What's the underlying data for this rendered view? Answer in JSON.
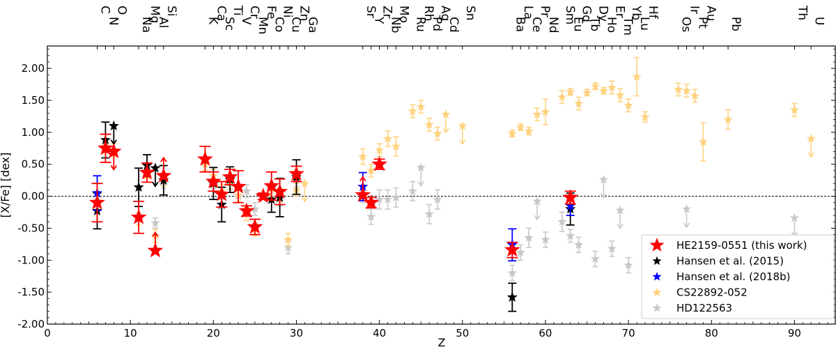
{
  "chart_data": {
    "type": "scatter",
    "title": "",
    "xlabel": "Z",
    "ylabel": "[X/Fe] [dex]",
    "xlim": [
      0,
      95
    ],
    "ylim": [
      -2.0,
      2.35
    ],
    "xticks": [
      0,
      10,
      20,
      30,
      40,
      50,
      60,
      70,
      80,
      90
    ],
    "xtick_labels": [
      "0",
      "10",
      "20",
      "30",
      "40",
      "50",
      "60",
      "70",
      "80",
      "90"
    ],
    "yticks": [
      -2.0,
      -1.5,
      -1.0,
      -0.5,
      0.0,
      0.5,
      1.0,
      1.5,
      2.0
    ],
    "ytick_labels": [
      "-2.00",
      "-1.50",
      "-1.00",
      "-0.50",
      "0.00",
      "0.50",
      "1.00",
      "1.50",
      "2.00"
    ],
    "reference_line": 0.0,
    "legend_position": "lower-right",
    "element_labels": [
      {
        "z": 6,
        "symbol": "C",
        "row": 0
      },
      {
        "z": 7,
        "symbol": "N",
        "row": 1
      },
      {
        "z": 8,
        "symbol": "O",
        "row": 0
      },
      {
        "z": 11,
        "symbol": "Na",
        "row": 1
      },
      {
        "z": 12,
        "symbol": "Mg",
        "row": 0
      },
      {
        "z": 13,
        "symbol": "Al",
        "row": 1
      },
      {
        "z": 14,
        "symbol": "Si",
        "row": 0
      },
      {
        "z": 19,
        "symbol": "K",
        "row": 1
      },
      {
        "z": 20,
        "symbol": "Ca",
        "row": 0
      },
      {
        "z": 21,
        "symbol": "Sc",
        "row": 1
      },
      {
        "z": 22,
        "symbol": "Ti",
        "row": 0
      },
      {
        "z": 23,
        "symbol": "V",
        "row": 1
      },
      {
        "z": 24,
        "symbol": "Cr",
        "row": 0
      },
      {
        "z": 25,
        "symbol": "Mn",
        "row": 1
      },
      {
        "z": 26,
        "symbol": "Fe",
        "row": 0
      },
      {
        "z": 27,
        "symbol": "Co",
        "row": 1
      },
      {
        "z": 28,
        "symbol": "Ni",
        "row": 0
      },
      {
        "z": 29,
        "symbol": "Cu",
        "row": 1
      },
      {
        "z": 30,
        "symbol": "Zn",
        "row": 0
      },
      {
        "z": 31,
        "symbol": "Ga",
        "row": 1
      },
      {
        "z": 38,
        "symbol": "Sr",
        "row": 0
      },
      {
        "z": 39,
        "symbol": "Y",
        "row": 1
      },
      {
        "z": 40,
        "symbol": "Zr",
        "row": 0
      },
      {
        "z": 41,
        "symbol": "Nb",
        "row": 1
      },
      {
        "z": 42,
        "symbol": "Mo",
        "row": 0
      },
      {
        "z": 44,
        "symbol": "Ru",
        "row": 1
      },
      {
        "z": 45,
        "symbol": "Rh",
        "row": 0
      },
      {
        "z": 46,
        "symbol": "Pd",
        "row": 1
      },
      {
        "z": 47,
        "symbol": "Ag",
        "row": 0
      },
      {
        "z": 48,
        "symbol": "Cd",
        "row": 1
      },
      {
        "z": 50,
        "symbol": "Sn",
        "row": 0
      },
      {
        "z": 56,
        "symbol": "Ba",
        "row": 1
      },
      {
        "z": 57,
        "symbol": "La",
        "row": 0
      },
      {
        "z": 58,
        "symbol": "Ce",
        "row": 1
      },
      {
        "z": 59,
        "symbol": "Pr",
        "row": 0
      },
      {
        "z": 60,
        "symbol": "Nd",
        "row": 1
      },
      {
        "z": 62,
        "symbol": "Sm",
        "row": 0
      },
      {
        "z": 63,
        "symbol": "Eu",
        "row": 1
      },
      {
        "z": 64,
        "symbol": "Gd",
        "row": 0
      },
      {
        "z": 65,
        "symbol": "Tb",
        "row": 1
      },
      {
        "z": 66,
        "symbol": "Dy",
        "row": 0
      },
      {
        "z": 67,
        "symbol": "Ho",
        "row": 1
      },
      {
        "z": 68,
        "symbol": "Er",
        "row": 0
      },
      {
        "z": 69,
        "symbol": "Tm",
        "row": 1
      },
      {
        "z": 70,
        "symbol": "Yb",
        "row": 0
      },
      {
        "z": 71,
        "symbol": "Lu",
        "row": 1
      },
      {
        "z": 72,
        "symbol": "Hf",
        "row": 0
      },
      {
        "z": 76,
        "symbol": "Os",
        "row": 1
      },
      {
        "z": 77,
        "symbol": "Ir",
        "row": 0
      },
      {
        "z": 78,
        "symbol": "Pt",
        "row": 1
      },
      {
        "z": 79,
        "symbol": "Au",
        "row": 0
      },
      {
        "z": 82,
        "symbol": "Pb",
        "row": 1
      },
      {
        "z": 90,
        "symbol": "Th",
        "row": 0
      },
      {
        "z": 92,
        "symbol": "U",
        "row": 1
      }
    ],
    "series": [
      {
        "name": "HD122563",
        "color": "#c8c8c8",
        "marker": "star-small",
        "points": [
          {
            "z": 13,
            "y": -0.42,
            "err": 0.08
          },
          {
            "z": 14,
            "y": 0.22,
            "err": 0.1
          },
          {
            "z": 20,
            "y": 0.22,
            "err": 0.1
          },
          {
            "z": 21,
            "y": 0.05,
            "err": 0.1
          },
          {
            "z": 22,
            "y": 0.2,
            "err": 0.1
          },
          {
            "z": 23,
            "y": 0.0,
            "err": 0.1
          },
          {
            "z": 24,
            "y": 0.08,
            "err": 0.1
          },
          {
            "z": 25,
            "y": -0.2,
            "err": 0.1
          },
          {
            "z": 26,
            "y": 0.0,
            "err": 0.05
          },
          {
            "z": 27,
            "y": 0.1,
            "err": 0.1
          },
          {
            "z": 28,
            "y": -0.05,
            "err": 0.1
          },
          {
            "z": 29,
            "y": -0.8,
            "err": 0.1
          },
          {
            "z": 30,
            "y": 0.25,
            "err": 0.1
          },
          {
            "z": 38,
            "y": 0.0,
            "err": 0.1
          },
          {
            "z": 39,
            "y": -0.32,
            "err": 0.12
          },
          {
            "z": 40,
            "y": -0.05,
            "err": 0.15
          },
          {
            "z": 41,
            "y": -0.05,
            "err": 0.15
          },
          {
            "z": 42,
            "y": -0.02,
            "err": 0.15
          },
          {
            "z": 44,
            "y": 0.08,
            "err": 0.15
          },
          {
            "z": 45,
            "y": 0.45,
            "upper_limit": true
          },
          {
            "z": 46,
            "y": -0.28,
            "err": 0.15
          },
          {
            "z": 47,
            "y": -0.05,
            "err": 0.15
          },
          {
            "z": 56,
            "y": -1.2,
            "err": 0.12
          },
          {
            "z": 57,
            "y": -0.88,
            "err": 0.12
          },
          {
            "z": 58,
            "y": -0.65,
            "err": 0.15
          },
          {
            "z": 59,
            "y": -0.08,
            "upper_limit": true
          },
          {
            "z": 60,
            "y": -0.68,
            "err": 0.12
          },
          {
            "z": 62,
            "y": -0.4,
            "err": 0.15
          },
          {
            "z": 63,
            "y": -0.62,
            "err": 0.1
          },
          {
            "z": 64,
            "y": -0.76,
            "err": 0.12
          },
          {
            "z": 66,
            "y": -0.98,
            "err": 0.12
          },
          {
            "z": 67,
            "y": 0.26,
            "upper_limit": true
          },
          {
            "z": 68,
            "y": -0.82,
            "err": 0.12
          },
          {
            "z": 69,
            "y": -0.22,
            "upper_limit": true
          },
          {
            "z": 70,
            "y": -1.08,
            "err": 0.12
          },
          {
            "z": 77,
            "y": -0.2,
            "upper_limit": true
          },
          {
            "z": 90,
            "y": -0.34,
            "upper_limit": true
          }
        ]
      },
      {
        "name": "CS22892-052",
        "color": "#ffd27f",
        "marker": "star-small",
        "points": [
          {
            "z": 6,
            "y": -0.1,
            "err": 0.1
          },
          {
            "z": 7,
            "y": 0.78,
            "err": 0.1
          },
          {
            "z": 8,
            "y": 0.72,
            "err": 0.1
          },
          {
            "z": 11,
            "y": -0.35,
            "err": 0.1
          },
          {
            "z": 12,
            "y": 0.32,
            "err": 0.1
          },
          {
            "z": 13,
            "y": -0.62,
            "err": 0.1
          },
          {
            "z": 14,
            "y": 0.26,
            "err": 0.1
          },
          {
            "z": 19,
            "y": 0.5,
            "err": 0.1
          },
          {
            "z": 20,
            "y": 0.32,
            "err": 0.1
          },
          {
            "z": 21,
            "y": 0.08,
            "err": 0.1
          },
          {
            "z": 22,
            "y": 0.22,
            "err": 0.1
          },
          {
            "z": 23,
            "y": 0.02,
            "err": 0.1
          },
          {
            "z": 24,
            "y": -0.28,
            "err": 0.1
          },
          {
            "z": 25,
            "y": -0.52,
            "err": 0.1
          },
          {
            "z": 26,
            "y": 0.0,
            "err": 0.05
          },
          {
            "z": 27,
            "y": 0.1,
            "err": 0.1
          },
          {
            "z": 28,
            "y": 0.02,
            "err": 0.1
          },
          {
            "z": 29,
            "y": -0.68,
            "err": 0.1
          },
          {
            "z": 30,
            "y": 0.1,
            "err": 0.1
          },
          {
            "z": 31,
            "y": 0.2,
            "upper_limit": true
          },
          {
            "z": 38,
            "y": 0.62,
            "err": 0.12
          },
          {
            "z": 39,
            "y": 0.4,
            "err": 0.1
          },
          {
            "z": 40,
            "y": 0.72,
            "err": 0.1
          },
          {
            "z": 41,
            "y": 0.9,
            "err": 0.12
          },
          {
            "z": 42,
            "y": 0.78,
            "err": 0.15
          },
          {
            "z": 44,
            "y": 1.33,
            "err": 0.1
          },
          {
            "z": 45,
            "y": 1.4,
            "err": 0.1
          },
          {
            "z": 46,
            "y": 1.12,
            "err": 0.1
          },
          {
            "z": 47,
            "y": 0.98,
            "err": 0.1
          },
          {
            "z": 48,
            "y": 1.28,
            "upper_limit": true
          },
          {
            "z": 50,
            "y": 1.1,
            "upper_limit": true
          },
          {
            "z": 56,
            "y": 0.98,
            "err": 0.05
          },
          {
            "z": 57,
            "y": 1.08,
            "err": 0.05
          },
          {
            "z": 58,
            "y": 1.02,
            "err": 0.06
          },
          {
            "z": 59,
            "y": 1.28,
            "err": 0.1
          },
          {
            "z": 60,
            "y": 1.32,
            "err": 0.2
          },
          {
            "z": 62,
            "y": 1.55,
            "err": 0.1
          },
          {
            "z": 63,
            "y": 1.63,
            "err": 0.05
          },
          {
            "z": 64,
            "y": 1.45,
            "err": 0.1
          },
          {
            "z": 65,
            "y": 1.62,
            "err": 0.05
          },
          {
            "z": 66,
            "y": 1.72,
            "err": 0.05
          },
          {
            "z": 67,
            "y": 1.65,
            "err": 0.05
          },
          {
            "z": 68,
            "y": 1.7,
            "err": 0.1
          },
          {
            "z": 69,
            "y": 1.58,
            "err": 0.1
          },
          {
            "z": 70,
            "y": 1.42,
            "err": 0.1
          },
          {
            "z": 71,
            "y": 1.87,
            "err": 0.3
          },
          {
            "z": 72,
            "y": 1.24,
            "err": 0.08
          },
          {
            "z": 76,
            "y": 1.67,
            "err": 0.1
          },
          {
            "z": 77,
            "y": 1.65,
            "err": 0.1
          },
          {
            "z": 78,
            "y": 1.57,
            "err": 0.1
          },
          {
            "z": 79,
            "y": 0.85,
            "err": 0.3
          },
          {
            "z": 82,
            "y": 1.2,
            "err": 0.15
          },
          {
            "z": 90,
            "y": 1.35,
            "err": 0.1
          },
          {
            "z": 92,
            "y": 0.9,
            "upper_limit": true
          }
        ]
      },
      {
        "name": "Hansen et al. (2015)",
        "color": "#000000",
        "marker": "star-medium",
        "points": [
          {
            "z": 6,
            "y": -0.23,
            "err": 0.28
          },
          {
            "z": 7,
            "y": 0.88,
            "err": 0.28
          },
          {
            "z": 8,
            "y": 1.1,
            "upper_limit": true
          },
          {
            "z": 11,
            "y": 0.14,
            "err": 0.3
          },
          {
            "z": 12,
            "y": 0.48,
            "err": 0.17
          },
          {
            "z": 13,
            "y": 0.44,
            "upper_limit": true
          },
          {
            "z": 14,
            "y": 0.25,
            "err": 0.23
          },
          {
            "z": 20,
            "y": 0.2,
            "err": 0.25
          },
          {
            "z": 21,
            "y": -0.13,
            "err": 0.27
          },
          {
            "z": 22,
            "y": 0.26,
            "err": 0.2
          },
          {
            "z": 27,
            "y": -0.05,
            "err": 0.2
          },
          {
            "z": 28,
            "y": -0.02,
            "err": 0.3
          },
          {
            "z": 30,
            "y": 0.3,
            "err": 0.27
          },
          {
            "z": 56,
            "y": -1.58,
            "err": 0.22
          },
          {
            "z": 63,
            "y": -0.2,
            "err": 0.25
          }
        ]
      },
      {
        "name": "Hansen et al. (2018b)",
        "color": "#0000ff",
        "marker": "star-medium",
        "points": [
          {
            "z": 6,
            "y": 0.05,
            "err": 0.27
          },
          {
            "z": 38,
            "y": 0.15,
            "err": 0.22
          },
          {
            "z": 56,
            "y": -0.76,
            "err": 0.25
          },
          {
            "z": 63,
            "y": -0.15,
            "err": 0.15
          }
        ]
      },
      {
        "name": "HE2159-0551 (this work)",
        "color": "#ff0000",
        "marker": "star-large",
        "points": [
          {
            "z": 6,
            "y": -0.1,
            "err": 0.3
          },
          {
            "z": 7,
            "y": 0.75,
            "err": 0.22
          },
          {
            "z": 8,
            "y": 0.7,
            "upper_limit": true
          },
          {
            "z": 11,
            "y": -0.33,
            "err": 0.25
          },
          {
            "z": 12,
            "y": 0.37,
            "err": 0.15
          },
          {
            "z": 13,
            "y": -0.85,
            "lower_limit": true
          },
          {
            "z": 14,
            "y": 0.32,
            "lower_limit": true
          },
          {
            "z": 19,
            "y": 0.58,
            "err": 0.2
          },
          {
            "z": 20,
            "y": 0.23,
            "err": 0.15
          },
          {
            "z": 21,
            "y": 0.03,
            "err": 0.2
          },
          {
            "z": 22,
            "y": 0.3,
            "err": 0.12
          },
          {
            "z": 23,
            "y": 0.15,
            "err": 0.25
          },
          {
            "z": 24,
            "y": -0.23,
            "err": 0.08
          },
          {
            "z": 25,
            "y": -0.48,
            "err": 0.12
          },
          {
            "z": 26,
            "y": 0.0,
            "err": 0.05
          },
          {
            "z": 27,
            "y": 0.16,
            "err": 0.22
          },
          {
            "z": 28,
            "y": 0.07,
            "err": 0.2
          },
          {
            "z": 30,
            "y": 0.35,
            "err": 0.12
          },
          {
            "z": 38,
            "y": 0.02,
            "lower_limit": true
          },
          {
            "z": 39,
            "y": -0.1,
            "err": 0.08
          },
          {
            "z": 40,
            "y": 0.5,
            "err": 0.08
          },
          {
            "z": 56,
            "y": -0.84,
            "err": 0.12
          },
          {
            "z": 63,
            "y": -0.02,
            "err": 0.1
          }
        ]
      }
    ]
  }
}
